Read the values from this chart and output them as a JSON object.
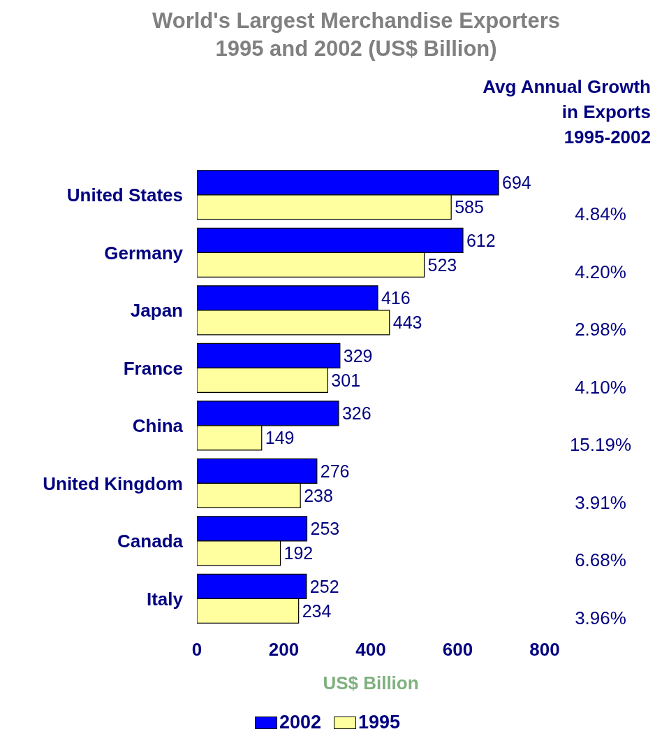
{
  "chart_data": {
    "type": "bar",
    "orientation": "horizontal",
    "title": "World's Largest Merchandise Exporters\n1995 and 2002 (US$ Billion)",
    "xlabel": "US$ Billion",
    "categories": [
      "United States",
      "Germany",
      "Japan",
      "France",
      "China",
      "United Kingdom",
      "Canada",
      "Italy"
    ],
    "series": [
      {
        "name": "2002",
        "color": "#0000ff",
        "values": [
          694,
          612,
          416,
          329,
          326,
          276,
          253,
          252
        ]
      },
      {
        "name": "1995",
        "color": "#ffffa0",
        "values": [
          585,
          523,
          443,
          301,
          149,
          238,
          192,
          234
        ]
      }
    ],
    "xlim": [
      0,
      800
    ],
    "xticks": [
      0,
      200,
      400,
      600,
      800
    ],
    "grid": false,
    "legend": "bottom",
    "data_labels": true,
    "annotations": [
      "Avg Annual Growth\nin Exports\n1995-2002",
      "4.84%",
      "4.20%",
      "2.98%",
      "4.10%",
      "15.19%",
      "3.91%",
      "6.68%",
      "3.96%"
    ]
  }
}
